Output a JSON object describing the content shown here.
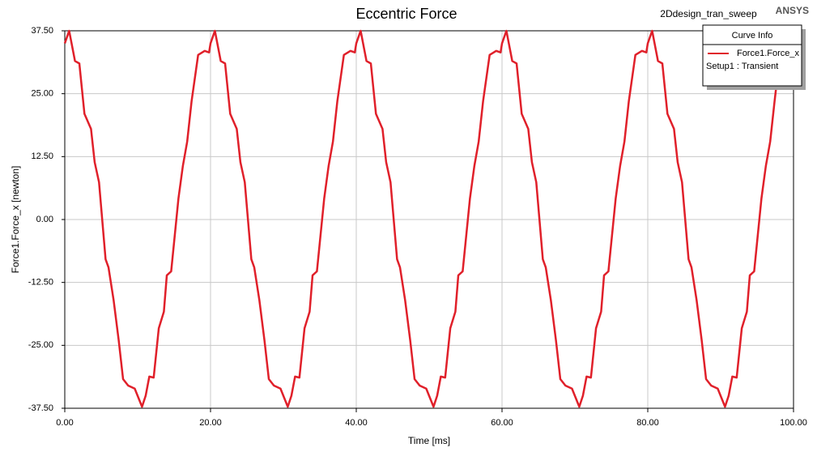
{
  "chart_data": {
    "type": "line",
    "title": "Eccentric Force",
    "subtitle": "2Ddesign_tran_sweep",
    "brand": "ANSYS",
    "legend_title": "Curve Info",
    "legend_note": "Setup1 : Transient",
    "x_label": "Time [ms]",
    "y_label": "Force1.Force_x [newton]",
    "grid": true,
    "legend_position": "top-right",
    "xlim": [
      0,
      100
    ],
    "ylim": [
      -37.5,
      37.5
    ],
    "xticks": [
      {
        "value": 0,
        "label": "0.00"
      },
      {
        "value": 20,
        "label": "20.00"
      },
      {
        "value": 40,
        "label": "40.00"
      },
      {
        "value": 60,
        "label": "60.00"
      },
      {
        "value": 80,
        "label": "80.00"
      },
      {
        "value": 100,
        "label": "100.00"
      }
    ],
    "yticks": [
      {
        "value": -37.5,
        "label": "-37.50"
      },
      {
        "value": -25,
        "label": "-25.00"
      },
      {
        "value": -12.5,
        "label": "-12.50"
      },
      {
        "value": 0,
        "label": "0.00"
      },
      {
        "value": 12.5,
        "label": "12.50"
      },
      {
        "value": 25,
        "label": "25.00"
      },
      {
        "value": 37.5,
        "label": "37.50"
      }
    ],
    "x": [
      0,
      0.6,
      1.4,
      2,
      2.7,
      3.6,
      4.1,
      4.7,
      5.6,
      6,
      6.7,
      7.4,
      8,
      8.7,
      9.6,
      10.6,
      11.1,
      11.6,
      12.2,
      12.9,
      13.6,
      14,
      14.6,
      15.6,
      16.2,
      16.8,
      17.4,
      18.3,
      19.2,
      19.8,
      20,
      20.6,
      21.4,
      22,
      22.7,
      23.6,
      24.1,
      24.7,
      25.6,
      26,
      26.7,
      27.4,
      28,
      28.7,
      29.6,
      30.6,
      31.1,
      31.6,
      32.2,
      32.9,
      33.6,
      34,
      34.6,
      35.6,
      36.2,
      36.8,
      37.4,
      38.3,
      39.2,
      39.8,
      40,
      40.6,
      41.4,
      42,
      42.7,
      43.6,
      44.1,
      44.7,
      45.6,
      46,
      46.7,
      47.4,
      48,
      48.7,
      49.6,
      50.6,
      51.1,
      51.6,
      52.2,
      52.9,
      53.6,
      54,
      54.6,
      55.6,
      56.2,
      56.8,
      57.4,
      58.3,
      59.2,
      59.8,
      60,
      60.6,
      61.4,
      62,
      62.7,
      63.6,
      64.1,
      64.7,
      65.6,
      66,
      66.7,
      67.4,
      68,
      68.7,
      69.6,
      70.6,
      71.1,
      71.6,
      72.2,
      72.9,
      73.6,
      74,
      74.6,
      75.6,
      76.2,
      76.8,
      77.4,
      78.3,
      79.2,
      79.8,
      80,
      80.6,
      81.4,
      82,
      82.7,
      83.6,
      84.1,
      84.7,
      85.6,
      86,
      86.7,
      87.4,
      88,
      88.7,
      89.6,
      90.6,
      91.1,
      91.6,
      92.2,
      92.9,
      93.6,
      94,
      94.6,
      95.6,
      96.2,
      96.8,
      97.4,
      97.8
    ],
    "series": [
      {
        "name": "Force1.Force_x",
        "color": "#e0202a",
        "values": [
          35,
          37.5,
          31.5,
          31,
          21,
          18,
          11.4,
          7.4,
          -7.9,
          -9.5,
          -16,
          -24,
          -31.7,
          -33,
          -33.6,
          -37.2,
          -35,
          -31.2,
          -31.4,
          -21.6,
          -18.3,
          -11.1,
          -10.3,
          4.2,
          10.6,
          15.5,
          23.5,
          32.7,
          33.5,
          33.2,
          35,
          37.5,
          31.5,
          31,
          21,
          18,
          11.4,
          7.4,
          -7.9,
          -9.5,
          -16,
          -24,
          -31.7,
          -33,
          -33.6,
          -37.2,
          -35,
          -31.2,
          -31.4,
          -21.6,
          -18.3,
          -11.1,
          -10.3,
          4.2,
          10.6,
          15.5,
          23.5,
          32.7,
          33.5,
          33.2,
          35,
          37.5,
          31.5,
          31,
          21,
          18,
          11.4,
          7.4,
          -7.9,
          -9.5,
          -16,
          -24,
          -31.7,
          -33,
          -33.6,
          -37.2,
          -35,
          -31.2,
          -31.4,
          -21.6,
          -18.3,
          -11.1,
          -10.3,
          4.2,
          10.6,
          15.5,
          23.5,
          32.7,
          33.5,
          33.2,
          35,
          37.5,
          31.5,
          31,
          21,
          18,
          11.4,
          7.4,
          -7.9,
          -9.5,
          -16,
          -24,
          -31.7,
          -33,
          -33.6,
          -37.2,
          -35,
          -31.2,
          -31.4,
          -21.6,
          -18.3,
          -11.1,
          -10.3,
          4.2,
          10.6,
          15.5,
          23.5,
          32.7,
          33.5,
          33.2,
          35,
          37.5,
          31.5,
          31,
          21,
          18,
          11.4,
          7.4,
          -7.9,
          -9.5,
          -16,
          -24,
          -31.7,
          -33,
          -33.6,
          -37.2,
          -35,
          -31.2,
          -31.4,
          -21.6,
          -18.3,
          -11.1,
          -10.3,
          4.2,
          10.6,
          15.5,
          23.5,
          28.5
        ]
      }
    ]
  }
}
